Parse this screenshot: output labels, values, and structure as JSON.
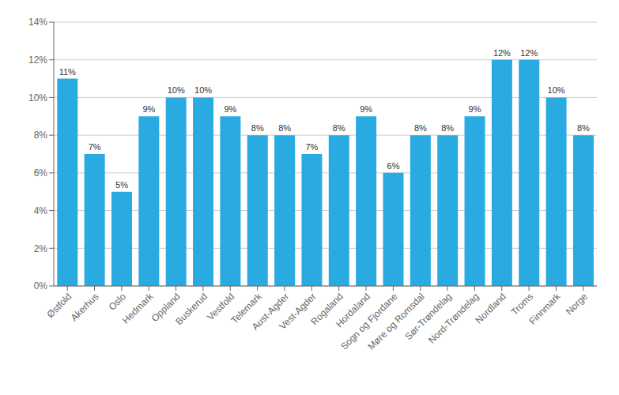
{
  "chart_data": {
    "type": "bar",
    "categories": [
      "Østfold",
      "Akerhus",
      "Oslo",
      "Hedmark",
      "Oppland",
      "Buskerud",
      "Vestfold",
      "Telemark",
      "Aust-Agder",
      "Vest-Agder",
      "Rogaland",
      "Hordaland",
      "Sogn og Fjordane",
      "Møre og Romsdal",
      "Sør-Trøndelag",
      "Nord-Trøndelag",
      "Nordland",
      "Troms",
      "Finnmark",
      "Norge"
    ],
    "values": [
      11,
      7,
      5,
      9,
      10,
      10,
      9,
      8,
      8,
      7,
      8,
      9,
      6,
      8,
      8,
      9,
      12,
      12,
      10,
      8
    ],
    "value_labels": [
      "11%",
      "7%",
      "5%",
      "9%",
      "10%",
      "10%",
      "9%",
      "8%",
      "8%",
      "7%",
      "8%",
      "9%",
      "6%",
      "8%",
      "8%",
      "9%",
      "12%",
      "12%",
      "10%",
      "8%"
    ],
    "data_labels": true,
    "color": "#29ABE2",
    "ylim": [
      0,
      14
    ],
    "yticks": [
      {
        "value": 0,
        "label": "0%"
      },
      {
        "value": 2,
        "label": "2%"
      },
      {
        "value": 4,
        "label": "4%"
      },
      {
        "value": 6,
        "label": "6%"
      },
      {
        "value": 8,
        "label": "8%"
      },
      {
        "value": 10,
        "label": "10%"
      },
      {
        "value": 12,
        "label": "12%"
      },
      {
        "value": 14,
        "label": "14%"
      }
    ],
    "grid": true
  }
}
